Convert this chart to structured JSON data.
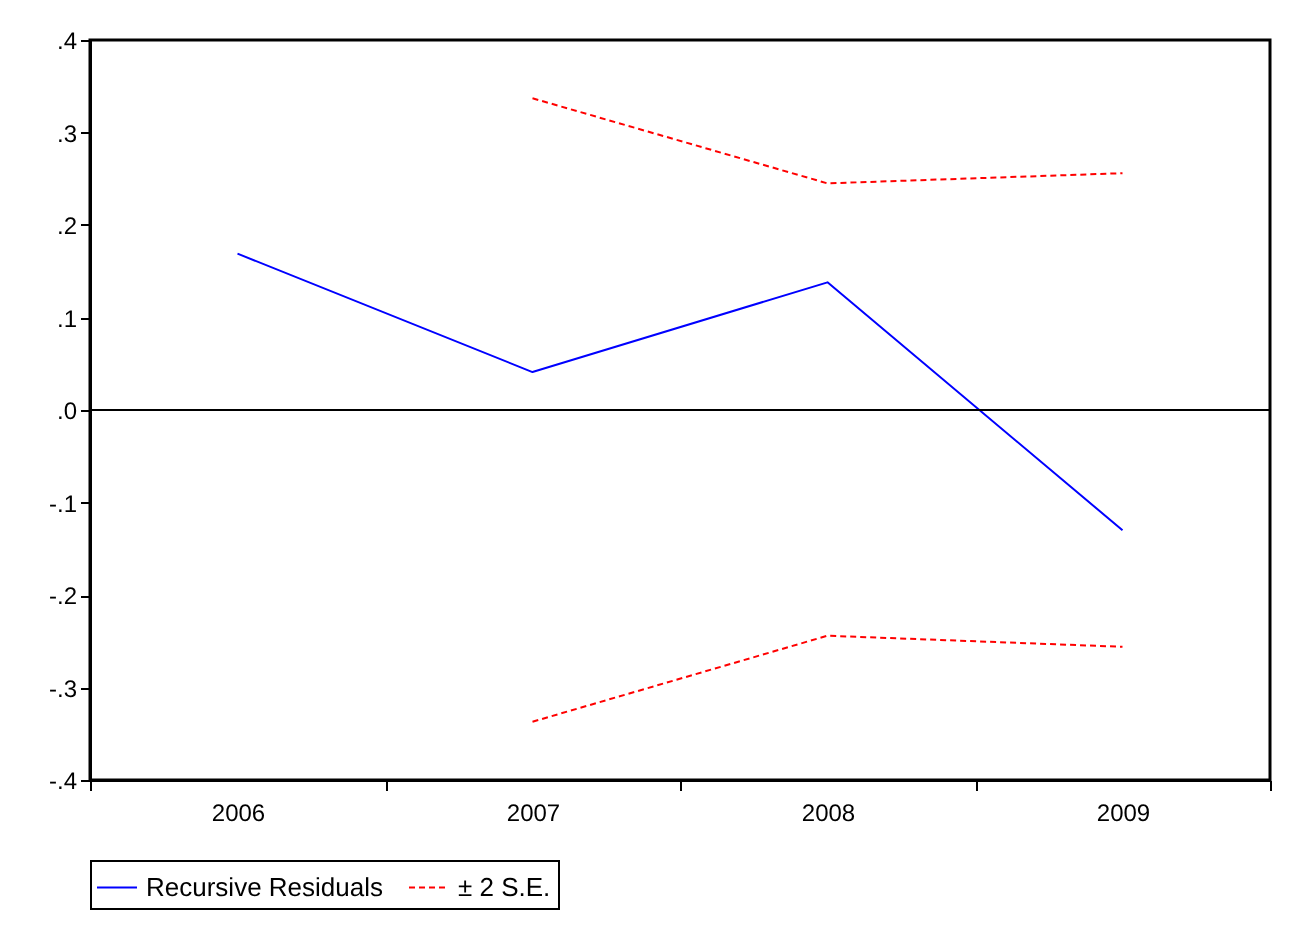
{
  "chart_data": {
    "type": "line",
    "categories": [
      "2006",
      "2007",
      "2008",
      "2009"
    ],
    "series": [
      {
        "name": "Recursive Residuals",
        "color": "#0000ff",
        "line_style": "solid",
        "values": [
          0.169,
          0.041,
          0.138,
          -0.13
        ]
      },
      {
        "name": "± 2 S.E.",
        "color": "#ff0000",
        "line_style": "dashed",
        "values": [
          null,
          0.337,
          0.245,
          0.256
        ]
      },
      {
        "color": "#ff0000",
        "line_style": "dashed",
        "values": [
          null,
          -0.337,
          -0.244,
          -0.256
        ]
      }
    ],
    "ylim": [
      -0.4,
      0.4
    ],
    "yticks": [
      {
        "value": -0.4,
        "label": "-.4"
      },
      {
        "value": -0.3,
        "label": "-.3"
      },
      {
        "value": -0.2,
        "label": "-.2"
      },
      {
        "value": -0.1,
        "label": "-.1"
      },
      {
        "value": 0,
        "label": ".0"
      },
      {
        "value": 0.1,
        "label": ".1"
      },
      {
        "value": 0.2,
        "label": ".2"
      },
      {
        "value": 0.3,
        "label": ".3"
      },
      {
        "value": 0.4,
        "label": ".4"
      }
    ],
    "ref_lines": [
      {
        "axis": "y",
        "value": 0,
        "color": "#000000"
      }
    ],
    "grid": false,
    "legend": "bottom"
  }
}
